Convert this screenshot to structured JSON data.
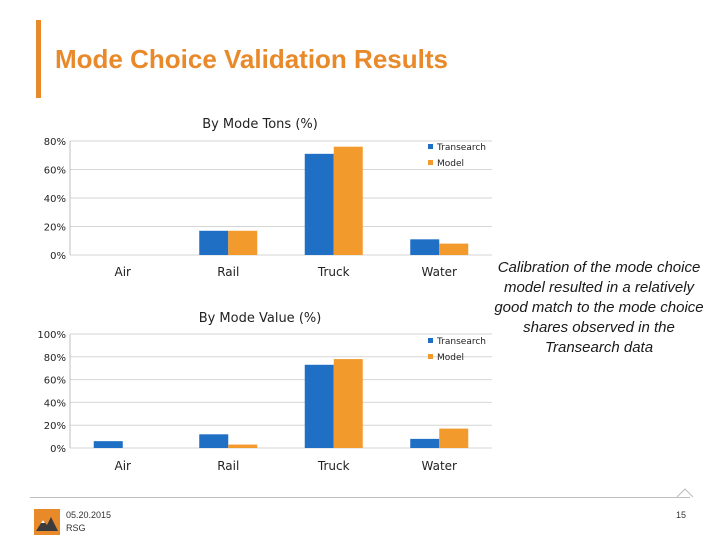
{
  "slide": {
    "title": "Mode Choice Validation Results",
    "callout": "Calibration of the mode choice model resulted in a relatively good match to the mode choice shares observed in the Transearch data",
    "footer_date": "05.20.2015",
    "footer_org": "RSG",
    "page_number": "15"
  },
  "colors": {
    "accent": "#e8892a",
    "transearch": "#1f6fc5",
    "model": "#f39a2c"
  },
  "chart_data": [
    {
      "type": "bar",
      "title": "By Mode Tons (%)",
      "categories": [
        "Air",
        "Rail",
        "Truck",
        "Water"
      ],
      "series": [
        {
          "name": "Transearch",
          "values": [
            0,
            17,
            71,
            11
          ]
        },
        {
          "name": "Model",
          "values": [
            0,
            17,
            76,
            8
          ]
        }
      ],
      "yticks": [
        "0%",
        "20%",
        "40%",
        "60%",
        "80%"
      ],
      "ylim": [
        0,
        80
      ],
      "grid": true,
      "legend": "top-right"
    },
    {
      "type": "bar",
      "title": "By Mode Value (%)",
      "categories": [
        "Air",
        "Rail",
        "Truck",
        "Water"
      ],
      "series": [
        {
          "name": "Transearch",
          "values": [
            6,
            12,
            73,
            8
          ]
        },
        {
          "name": "Model",
          "values": [
            0,
            3,
            78,
            17
          ]
        }
      ],
      "yticks": [
        "0%",
        "20%",
        "40%",
        "60%",
        "80%",
        "100%"
      ],
      "ylim": [
        0,
        100
      ],
      "grid": true,
      "legend": "top-right"
    }
  ]
}
